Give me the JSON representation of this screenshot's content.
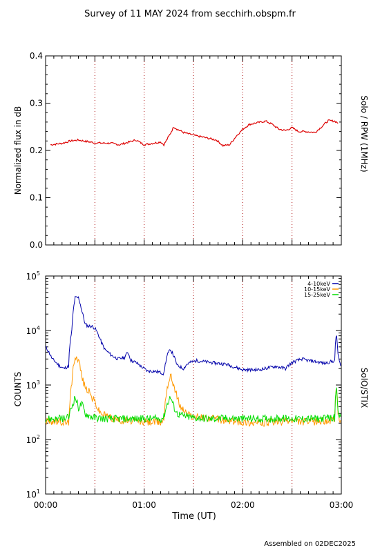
{
  "title": "Survey of 11 MAY 2024 from secchirh.obspm.fr",
  "footer": "Assembled on 02DEC2025",
  "colors": {
    "rpw": "#dd0000",
    "s1": "#0000aa",
    "s2": "#ff9900",
    "s3": "#00dd00",
    "vline": "#aa0000",
    "axis": "#000000"
  },
  "chart_data": [
    {
      "type": "line",
      "name": "rpw-panel",
      "ylabel": "Normalized flux in dB",
      "right_label": "Solo / RPW (1MHz)",
      "xlim": [
        0,
        180
      ],
      "ylim": [
        0,
        0.4
      ],
      "y_ticks": [
        {
          "v": 0,
          "label": "0.0"
        },
        {
          "v": 0.1,
          "label": "0.1"
        },
        {
          "v": 0.2,
          "label": "0.2"
        },
        {
          "v": 0.3,
          "label": "0.3"
        },
        {
          "v": 0.4,
          "label": "0.4"
        }
      ],
      "vlines": [
        30,
        60,
        90,
        120,
        150
      ],
      "series": [
        {
          "x": [
            3,
            10,
            15,
            20,
            30,
            40,
            45,
            55,
            60,
            70,
            72,
            76,
            78,
            80,
            84,
            90,
            96,
            104,
            108,
            112,
            116,
            120,
            124,
            128,
            134,
            138,
            142,
            146,
            150,
            154,
            158,
            164,
            168,
            172,
            176,
            178
          ],
          "y": [
            0.212,
            0.215,
            0.22,
            0.222,
            0.216,
            0.215,
            0.212,
            0.222,
            0.212,
            0.218,
            0.212,
            0.236,
            0.25,
            0.245,
            0.238,
            0.232,
            0.228,
            0.222,
            0.21,
            0.212,
            0.23,
            0.245,
            0.255,
            0.258,
            0.262,
            0.255,
            0.245,
            0.242,
            0.248,
            0.24,
            0.24,
            0.238,
            0.25,
            0.263,
            0.262,
            0.258
          ]
        }
      ]
    },
    {
      "type": "line",
      "name": "stix-panel",
      "ylabel": "COUNTS",
      "right_label": "SolO/STIX",
      "xlabel": "Time (UT)",
      "xlim": [
        0,
        180
      ],
      "x_ticks": [
        {
          "v": 0,
          "label": "00:00"
        },
        {
          "v": 60,
          "label": "01:00"
        },
        {
          "v": 120,
          "label": "02:00"
        },
        {
          "v": 180,
          "label": "03:00"
        }
      ],
      "y_scale": "log",
      "ylim": [
        10,
        100000
      ],
      "y_ticks": [
        {
          "v": 10,
          "base": "10",
          "exp": "1"
        },
        {
          "v": 100,
          "base": "10",
          "exp": "2"
        },
        {
          "v": 1000,
          "base": "10",
          "exp": "3"
        },
        {
          "v": 10000,
          "base": "10",
          "exp": "4"
        },
        {
          "v": 100000,
          "base": "10",
          "exp": "5"
        }
      ],
      "vlines": [
        30,
        60,
        90,
        120,
        150
      ],
      "series": [
        {
          "name": "4-10keV",
          "x": [
            0,
            4,
            8,
            11,
            14,
            16,
            18,
            20,
            22,
            24,
            26,
            28,
            30,
            34,
            36,
            40,
            44,
            48,
            50,
            52,
            55,
            58,
            62,
            66,
            70,
            72,
            74,
            76,
            80,
            84,
            86,
            88,
            92,
            100,
            110,
            120,
            130,
            140,
            146,
            150,
            156,
            160,
            164,
            170,
            176,
            177,
            178,
            180
          ],
          "y": [
            5000,
            3000,
            2300,
            2000,
            2200,
            10000,
            40000,
            40000,
            23000,
            13000,
            12000,
            12000,
            11000,
            6000,
            4500,
            3500,
            3000,
            3200,
            4000,
            2800,
            2600,
            2200,
            1800,
            1800,
            1700,
            1600,
            3500,
            4500,
            2300,
            2000,
            2400,
            2600,
            2800,
            2600,
            2400,
            1900,
            1900,
            2200,
            2000,
            2600,
            3000,
            2800,
            2700,
            2500,
            2800,
            9000,
            3500,
            1900
          ]
        },
        {
          "name": "10-15keV",
          "x": [
            0,
            10,
            14,
            16,
            18,
            20,
            22,
            24,
            26,
            28,
            30,
            32,
            34,
            36,
            38,
            40,
            42,
            44,
            50,
            60,
            70,
            72,
            74,
            76,
            78,
            80,
            82,
            86,
            90,
            100,
            110,
            120,
            130,
            140,
            150,
            160,
            170,
            176,
            177,
            178,
            180
          ],
          "y": [
            220,
            210,
            200,
            1000,
            3500,
            3000,
            1400,
            900,
            800,
            600,
            500,
            350,
            300,
            280,
            270,
            250,
            240,
            230,
            220,
            210,
            210,
            230,
            900,
            1500,
            1000,
            600,
            400,
            300,
            260,
            250,
            220,
            210,
            200,
            210,
            220,
            210,
            220,
            230,
            1000,
            250,
            210
          ]
        },
        {
          "name": "15-25keV",
          "x": [
            0,
            10,
            14,
            16,
            18,
            20,
            22,
            24,
            26,
            28,
            30,
            34,
            40,
            50,
            60,
            70,
            72,
            74,
            76,
            78,
            80,
            84,
            90,
            100,
            110,
            120,
            130,
            140,
            150,
            160,
            170,
            176,
            177,
            178,
            180
          ],
          "y": [
            240,
            240,
            250,
            400,
            600,
            380,
            450,
            300,
            280,
            260,
            250,
            245,
            240,
            240,
            240,
            240,
            260,
            450,
            600,
            400,
            300,
            270,
            250,
            240,
            245,
            240,
            240,
            245,
            240,
            240,
            245,
            250,
            900,
            300,
            240
          ]
        }
      ]
    }
  ]
}
